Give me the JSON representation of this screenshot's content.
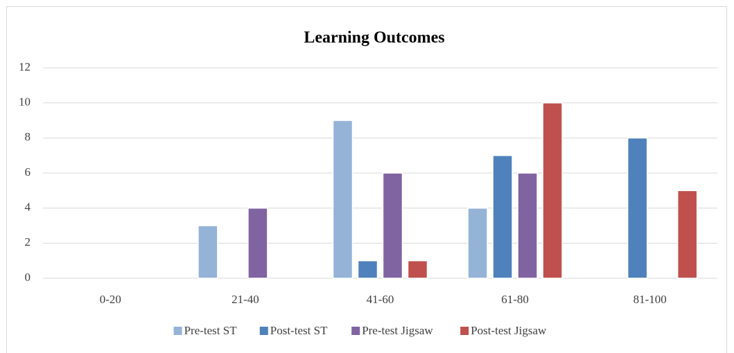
{
  "chart_data": {
    "type": "bar",
    "title": "Learning Outcomes",
    "categories": [
      "0-20",
      "21-40",
      "41-60",
      "61-80",
      "81-100"
    ],
    "series": [
      {
        "name": "Pre-test ST",
        "color": "#95b3d7",
        "values": [
          0,
          3,
          9,
          4,
          0
        ]
      },
      {
        "name": "Post-test ST",
        "color": "#4f81bd",
        "values": [
          0,
          0,
          1,
          7,
          8
        ]
      },
      {
        "name": "Pre-test Jigsaw",
        "color": "#8064a2",
        "values": [
          0,
          4,
          6,
          6,
          0
        ]
      },
      {
        "name": "Post-test Jigsaw",
        "color": "#c0504d",
        "values": [
          0,
          0,
          1,
          10,
          5
        ]
      }
    ],
    "ylim": [
      0,
      12
    ],
    "yticks": [
      0,
      2,
      4,
      6,
      8,
      10,
      12
    ],
    "grid": true,
    "legend": "bottom"
  }
}
